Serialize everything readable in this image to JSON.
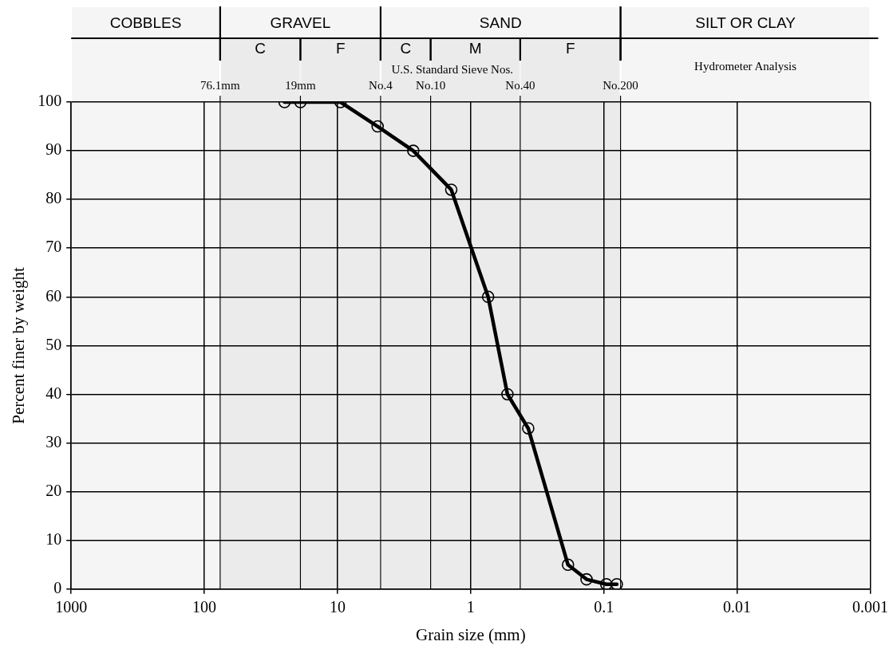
{
  "chart_data": {
    "type": "line",
    "xlabel": "Grain size (mm)",
    "ylabel": "Percent finer by weight",
    "x": [
      25,
      19,
      9.5,
      5,
      2.7,
      1.4,
      0.74,
      0.53,
      0.37,
      0.186,
      0.135,
      0.096,
      0.08
    ],
    "series": [
      {
        "color": "#000000",
        "values": [
          100,
          100,
          100,
          95,
          90,
          82,
          60,
          40,
          33,
          5,
          2,
          1,
          1
        ]
      }
    ],
    "xlim": [
      1000,
      0.001
    ],
    "xticks": [
      1000,
      100,
      10,
      1,
      0.1,
      0.01,
      0.001
    ],
    "log": "x",
    "ref_lines": [
      {
        "axis": "x",
        "value": 76.1,
        "label": "76.1mm"
      },
      {
        "axis": "x",
        "value": 19,
        "label": "19mm"
      },
      {
        "axis": "x",
        "value": 4.75,
        "label": "No.4"
      },
      {
        "axis": "x",
        "value": 2,
        "label": "No.10"
      },
      {
        "axis": "x",
        "value": 0.425,
        "label": "No.40"
      },
      {
        "axis": "x",
        "value": 0.075,
        "label": "No.200"
      }
    ],
    "ylim": [
      0,
      100
    ],
    "yticks": [
      0,
      10,
      20,
      30,
      40,
      50,
      60,
      70,
      80,
      90,
      100
    ],
    "grid": true,
    "marker": "circle",
    "line_style": "solid",
    "legend": false,
    "bands": [
      {
        "axis": "x",
        "from": 1000,
        "to": 76.1,
        "label": "COBBLES"
      },
      {
        "axis": "x",
        "from": 76.1,
        "to": 4.75,
        "label": "GRAVEL"
      },
      {
        "axis": "x",
        "from": 76.1,
        "to": 19,
        "label": "C"
      },
      {
        "axis": "x",
        "from": 19,
        "to": 4.75,
        "label": "F"
      },
      {
        "axis": "x",
        "from": 4.75,
        "to": 0.075,
        "label": "SAND"
      },
      {
        "axis": "x",
        "from": 4.75,
        "to": 2,
        "label": "C"
      },
      {
        "axis": "x",
        "from": 2,
        "to": 0.425,
        "label": "M"
      },
      {
        "axis": "x",
        "from": 0.425,
        "to": 0.075,
        "label": "F"
      },
      {
        "axis": "x",
        "from": 0.075,
        "to": 0.001,
        "label": "SILT OR CLAY"
      }
    ],
    "annotations": [
      "U.S. Standard Sieve Nos.",
      "Hydrometer Analysis"
    ]
  }
}
